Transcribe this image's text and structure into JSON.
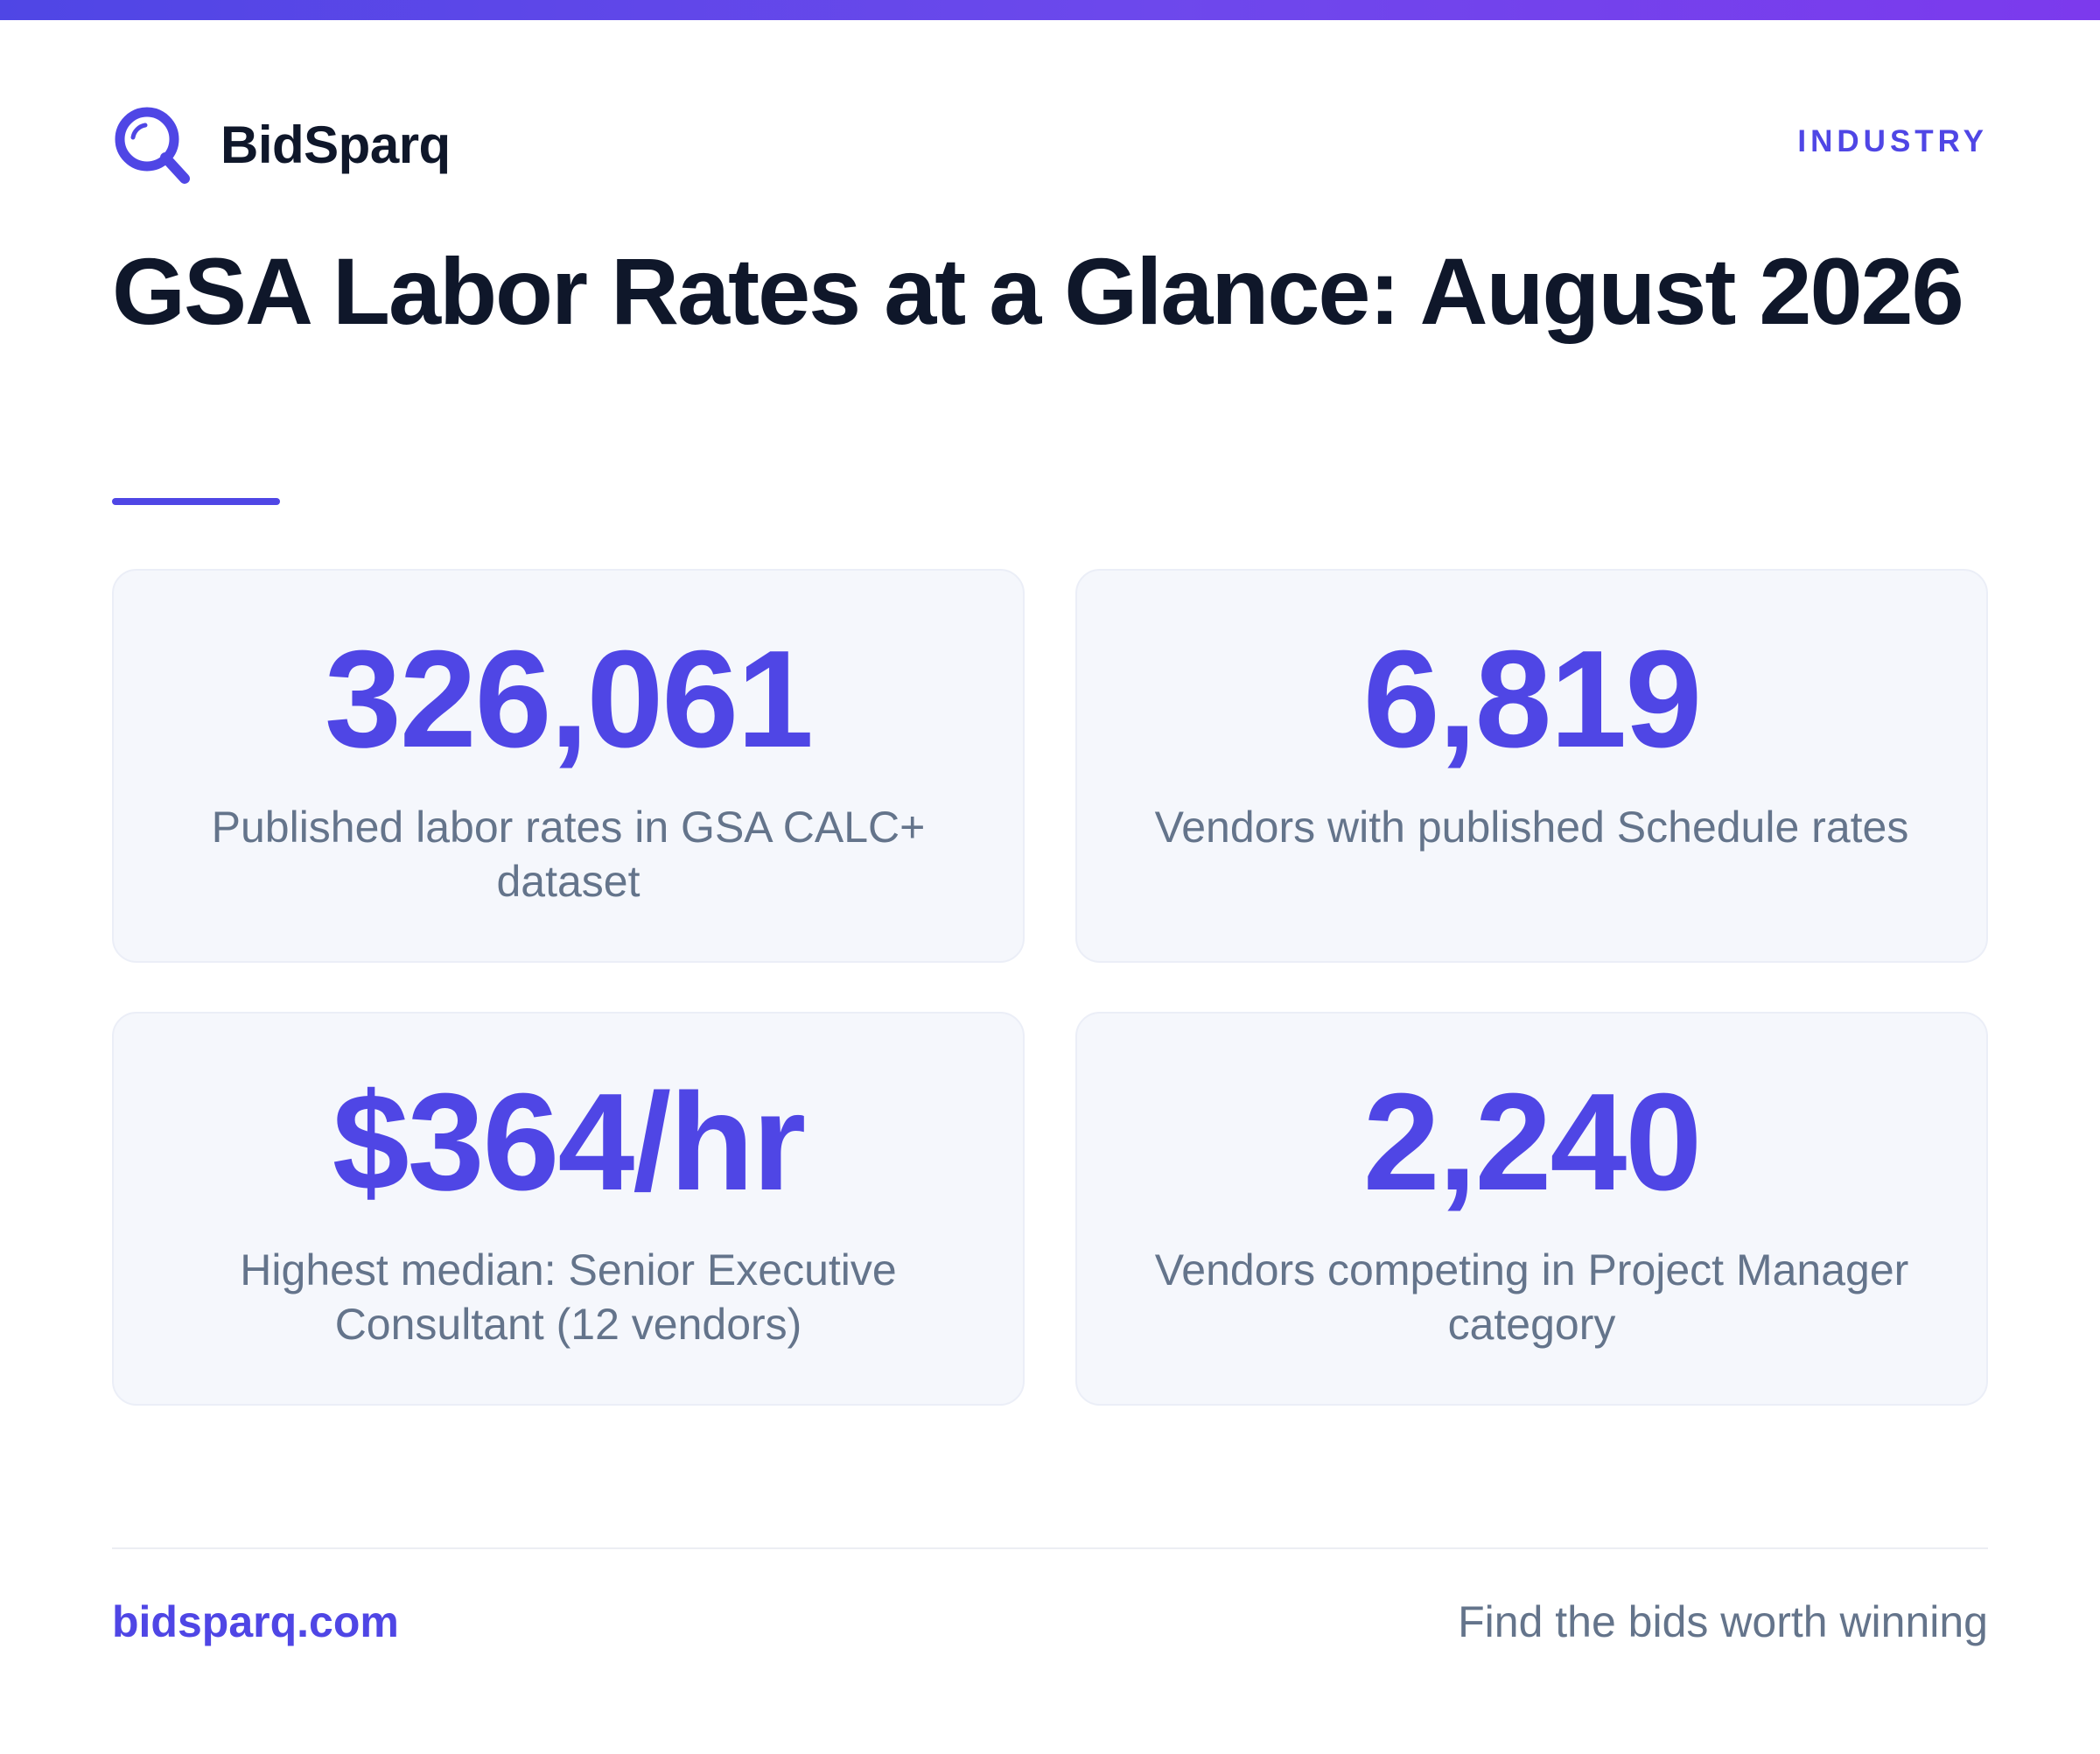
{
  "brand": {
    "name": "BidSparq",
    "logo_icon": "magnifier-q-logo-icon"
  },
  "header": {
    "category": "INDUSTRY"
  },
  "title": "GSA Labor Rates at a Glance: August 2026",
  "stats": [
    {
      "value": "326,061",
      "label": "Published labor rates in GSA CALC+ dataset"
    },
    {
      "value": "6,819",
      "label": "Vendors with published Schedule rates"
    },
    {
      "value": "$364/hr",
      "label": "Highest median: Senior Executive Consultant (12 vendors)"
    },
    {
      "value": "2,240",
      "label": "Vendors competing in Project Manager category"
    }
  ],
  "footer": {
    "url": "bidsparq.com",
    "tagline": "Find the bids worth winning"
  },
  "colors": {
    "accent": "#4f46e5",
    "accent_purple": "#7c3aed",
    "heading": "#0f172a",
    "muted": "#64748b",
    "card_bg": "#f5f7fc"
  }
}
